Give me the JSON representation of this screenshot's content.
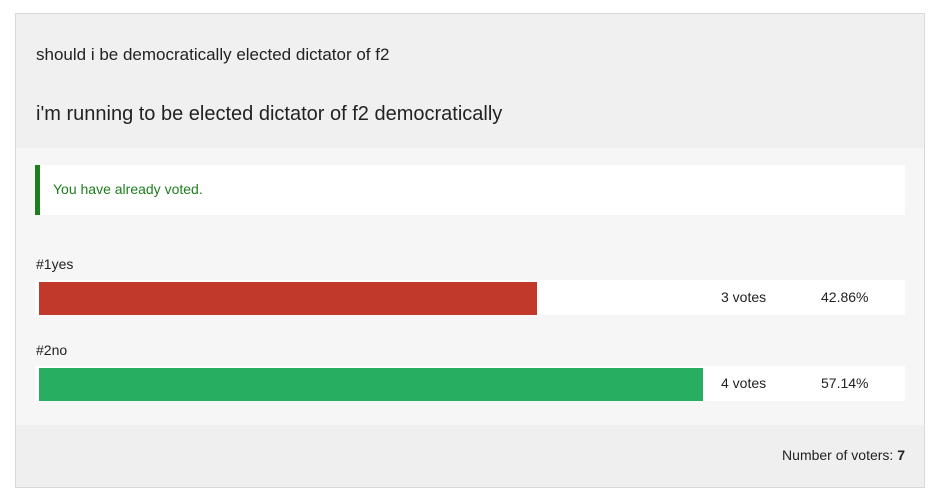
{
  "poll": {
    "question": "should i be democratically elected dictator of f2",
    "title": "i'm running to be elected dictator of f2 democratically",
    "notice": "You have already voted.",
    "options": [
      {
        "label": "#1yes",
        "votes_text": "3 votes",
        "percent_text": "42.86%",
        "fraction": 0.75,
        "color": "#c0392b"
      },
      {
        "label": "#2no",
        "votes_text": "4 votes",
        "percent_text": "57.14%",
        "fraction": 1.0,
        "color": "#27ae60"
      }
    ],
    "footer": {
      "label": "Number of voters: ",
      "count": "7"
    }
  }
}
